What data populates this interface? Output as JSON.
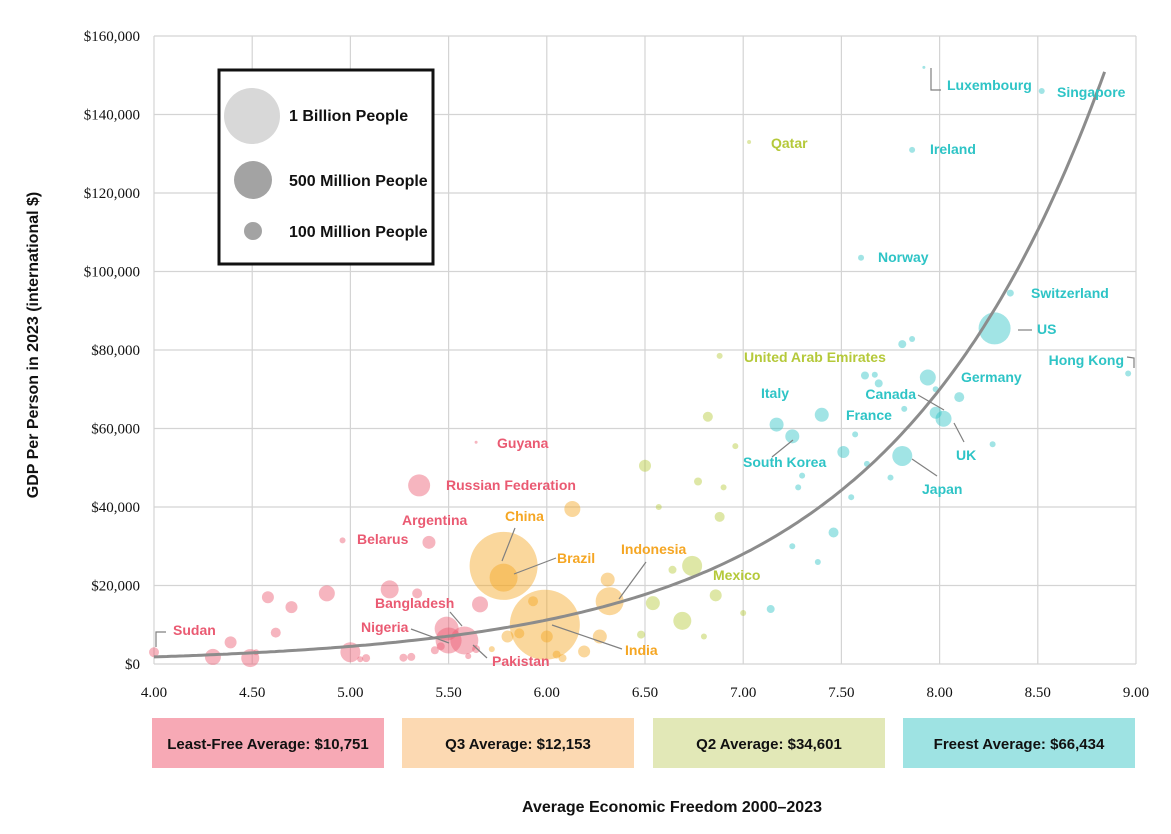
{
  "chart_data": {
    "type": "scatter",
    "xlabel": "Average Economic Freedom 2000–2023",
    "ylabel": "GDP Per Person in 2023 (international $)",
    "xlim": [
      4.0,
      9.0
    ],
    "ylim": [
      0,
      160000
    ],
    "x_ticks": [
      "4.00",
      "4.50",
      "5.00",
      "5.50",
      "6.00",
      "6.50",
      "7.00",
      "7.50",
      "8.00",
      "8.50",
      "9.00"
    ],
    "y_ticks": [
      "$0",
      "$20,000",
      "$40,000",
      "$60,000",
      "$80,000",
      "$100,000",
      "$120,000",
      "$140,000",
      "$160,000"
    ],
    "grid": true,
    "trend_curve": "exponential",
    "size_legend": [
      {
        "label": "1 Billion People",
        "population": 1000
      },
      {
        "label": "500 Million People",
        "population": 500
      },
      {
        "label": "100 Million People",
        "population": 100
      }
    ],
    "quartile_colors": {
      "least_free": "#ea5a72",
      "q3": "#f5a623",
      "q2": "#b5c93a",
      "freest": "#2ec4c6"
    },
    "quartile_averages": [
      {
        "label": "Least-Free Average: $10,751",
        "color": "#f7a9b5"
      },
      {
        "label": "Q3 Average: $12,153",
        "color": "#fcd9b2"
      },
      {
        "label": "Q2 Average: $34,601",
        "color": "#e2e8b7"
      },
      {
        "label": "Freest Average: $66,434",
        "color": "#9ee3e3"
      }
    ],
    "labeled_points": [
      {
        "name": "Luxembourg",
        "x": 7.92,
        "y": 152000,
        "q": "freest"
      },
      {
        "name": "Singapore",
        "x": 8.52,
        "y": 146000,
        "q": "freest"
      },
      {
        "name": "Qatar",
        "x": 7.03,
        "y": 133000,
        "q": "q2"
      },
      {
        "name": "Ireland",
        "x": 7.86,
        "y": 131000,
        "q": "freest"
      },
      {
        "name": "Norway",
        "x": 7.6,
        "y": 103500,
        "q": "freest"
      },
      {
        "name": "Switzerland",
        "x": 8.36,
        "y": 94500,
        "q": "freest"
      },
      {
        "name": "US",
        "x": 8.28,
        "y": 85500,
        "q": "freest"
      },
      {
        "name": "Hong Kong",
        "x": 8.96,
        "y": 74000,
        "q": "freest"
      },
      {
        "name": "United Arab Emirates",
        "x": 6.88,
        "y": 78500,
        "q": "q2"
      },
      {
        "name": "Germany",
        "x": 7.94,
        "y": 73000,
        "q": "freest"
      },
      {
        "name": "Canada",
        "x": 7.98,
        "y": 64000,
        "q": "freest"
      },
      {
        "name": "Italy",
        "x": 7.17,
        "y": 61000,
        "q": "freest"
      },
      {
        "name": "France",
        "x": 7.4,
        "y": 63500,
        "q": "freest"
      },
      {
        "name": "UK",
        "x": 8.02,
        "y": 62500,
        "q": "freest"
      },
      {
        "name": "South Korea",
        "x": 7.25,
        "y": 58000,
        "q": "freest"
      },
      {
        "name": "Japan",
        "x": 7.81,
        "y": 53000,
        "q": "freest"
      },
      {
        "name": "Guyana",
        "x": 5.64,
        "y": 56500,
        "q": "least_free"
      },
      {
        "name": "Russian Federation",
        "x": 5.35,
        "y": 45500,
        "q": "least_free"
      },
      {
        "name": "Argentina",
        "x": 5.4,
        "y": 31000,
        "q": "least_free"
      },
      {
        "name": "Belarus",
        "x": 4.96,
        "y": 31500,
        "q": "least_free"
      },
      {
        "name": "China",
        "x": 5.78,
        "y": 25000,
        "q": "q3"
      },
      {
        "name": "Brazil",
        "x": 5.78,
        "y": 22000,
        "q": "q3"
      },
      {
        "name": "Indonesia",
        "x": 6.32,
        "y": 16000,
        "q": "q3"
      },
      {
        "name": "Mexico",
        "x": 6.74,
        "y": 25000,
        "q": "q2"
      },
      {
        "name": "Bangladesh",
        "x": 5.49,
        "y": 9000,
        "q": "least_free"
      },
      {
        "name": "Nigeria",
        "x": 5.5,
        "y": 6000,
        "q": "least_free"
      },
      {
        "name": "Pakistan",
        "x": 5.58,
        "y": 6000,
        "q": "least_free"
      },
      {
        "name": "India",
        "x": 5.99,
        "y": 10000,
        "q": "q3"
      },
      {
        "name": "Sudan",
        "x": 4.0,
        "y": 3000,
        "q": "least_free"
      }
    ]
  }
}
